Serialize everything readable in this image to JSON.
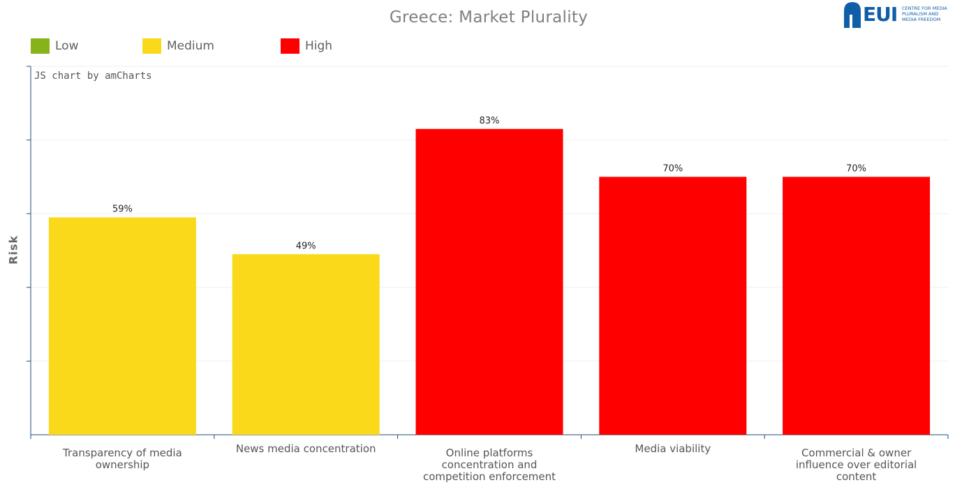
{
  "title": "Greece: Market Plurality",
  "logo": {
    "name": "EUI",
    "subtitle": [
      "CENTRE FOR MEDIA",
      "PLURALISM AND",
      "MEDIA FREEDOM"
    ]
  },
  "credit": "JS chart by amCharts",
  "legend": [
    {
      "label": "Low",
      "color": "#86b31a"
    },
    {
      "label": "Medium",
      "color": "#f9d919"
    },
    {
      "label": "High",
      "color": "#ff0000"
    }
  ],
  "chart_data": {
    "type": "bar",
    "title": "Greece: Market Plurality",
    "xlabel": "",
    "ylabel": "Risk",
    "ylim": [
      0,
      100
    ],
    "grid": true,
    "legend_position": "top-left",
    "categories": [
      "Transparency of media ownership",
      "News media concentration",
      "Online platforms concentration and competition enforcement",
      "Media viability",
      "Commercial & owner influence over editorial content"
    ],
    "category_label_lines": [
      [
        "Transparency of media",
        "ownership"
      ],
      [
        "News media concentration"
      ],
      [
        "Online platforms",
        "concentration and",
        "competition enforcement"
      ],
      [
        "Media viability"
      ],
      [
        "Commercial & owner",
        "influence over editorial",
        "content"
      ]
    ],
    "values": [
      59,
      49,
      83,
      70,
      70
    ],
    "value_labels": [
      "59%",
      "49%",
      "83%",
      "70%",
      "70%"
    ],
    "risk_levels": [
      "Medium",
      "Medium",
      "High",
      "High",
      "High"
    ],
    "colors": [
      "#f9d919",
      "#f9d919",
      "#ff0000",
      "#ff0000",
      "#ff0000"
    ]
  }
}
